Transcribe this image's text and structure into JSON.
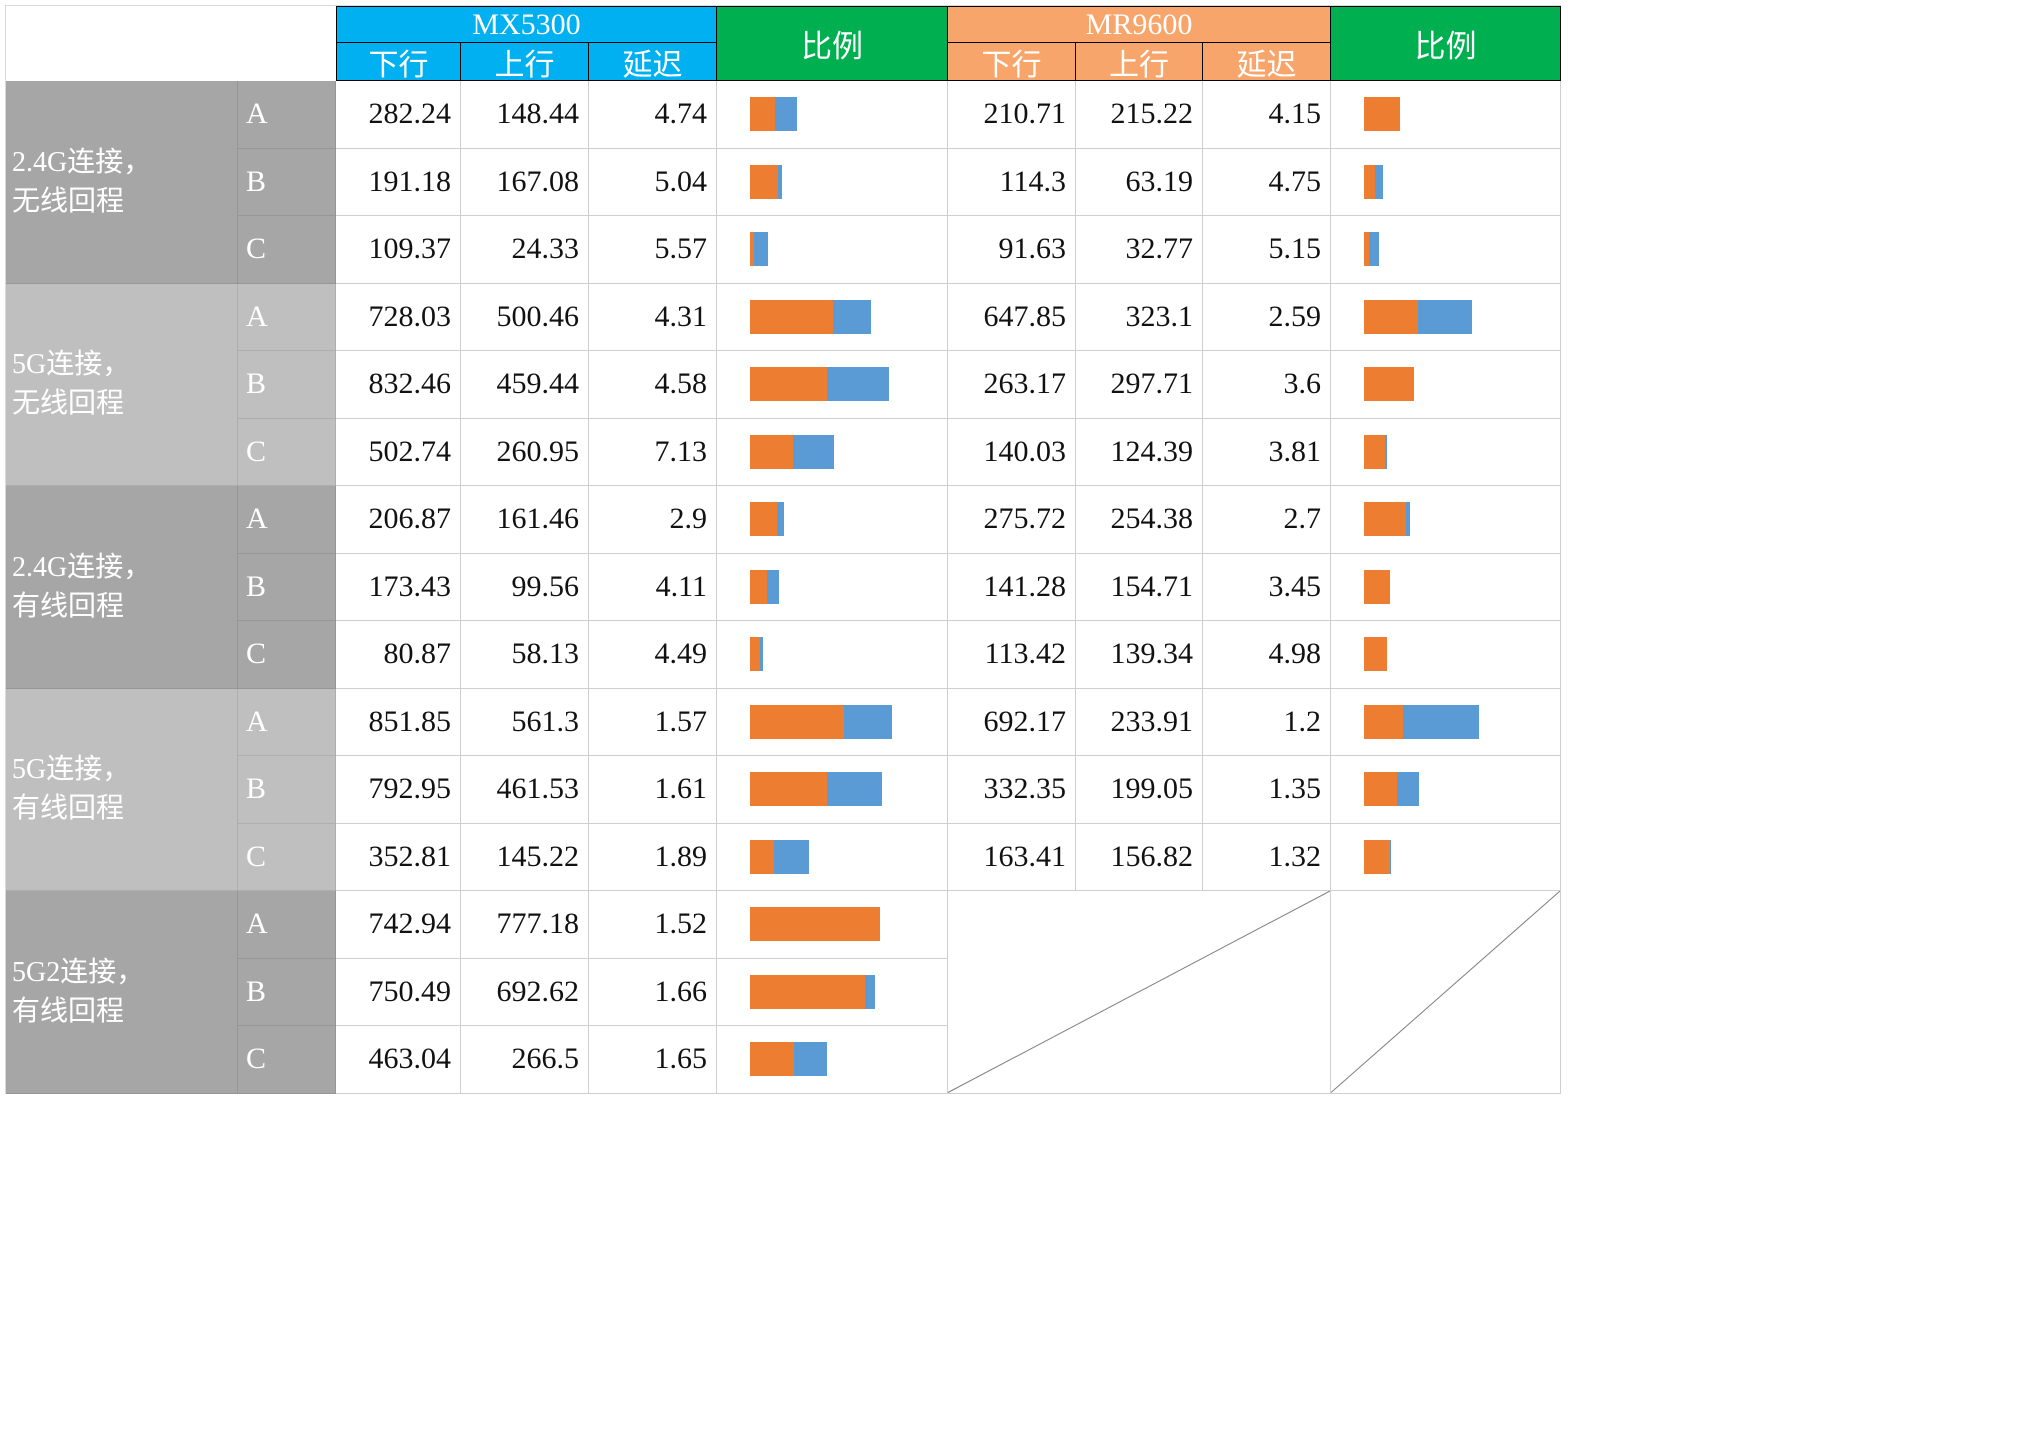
{
  "header": {
    "mx_title": "MX5300",
    "mr_title": "MR9600",
    "ratio_label": "比例",
    "subcols": [
      "下行",
      "上行",
      "延迟"
    ]
  },
  "colors": {
    "mx_header": "#00b0f0",
    "mr_header": "#f7a56a",
    "ratio_header": "#00b050",
    "bar_downlink_blue": "#5b9bd5",
    "bar_uplink_orange": "#ed7d31",
    "group_dark_gray": "#a6a6a6",
    "group_light_gray": "#bfbfbf"
  },
  "chart_data": {
    "type": "table",
    "devices": [
      "MX5300",
      "MR9600"
    ],
    "metric_columns": [
      "下行",
      "上行",
      "延迟",
      "比例"
    ],
    "bar_colors": {
      "下行": "#5b9bd5",
      "上行": "#ed7d31"
    },
    "bar_note": "比例 column shows overlaid data bars: blue bar = 下行 value, orange bar = 上行 value drawn in front, both scaled 1px per 6 units",
    "row_groups": [
      {
        "label1": "2.4G连接，",
        "label2": "无线回程",
        "shade": "dark",
        "rows": [
          {
            "name": "A",
            "mx_down": "282.24",
            "mx_up": "148.44",
            "mx_lat": "4.74",
            "mr_down": "210.71",
            "mr_up": "215.22",
            "mr_lat": "4.15"
          },
          {
            "name": "B",
            "mx_down": "191.18",
            "mx_up": "167.08",
            "mx_lat": "5.04",
            "mr_down": "114.3",
            "mr_up": "63.19",
            "mr_lat": "4.75"
          },
          {
            "name": "C",
            "mx_down": "109.37",
            "mx_up": "24.33",
            "mx_lat": "5.57",
            "mr_down": "91.63",
            "mr_up": "32.77",
            "mr_lat": "5.15"
          }
        ]
      },
      {
        "label1": "5G连接，",
        "label2": "无线回程",
        "shade": "light",
        "rows": [
          {
            "name": "A",
            "mx_down": "728.03",
            "mx_up": "500.46",
            "mx_lat": "4.31",
            "mr_down": "647.85",
            "mr_up": "323.1",
            "mr_lat": "2.59"
          },
          {
            "name": "B",
            "mx_down": "832.46",
            "mx_up": "459.44",
            "mx_lat": "4.58",
            "mr_down": "263.17",
            "mr_up": "297.71",
            "mr_lat": "3.6"
          },
          {
            "name": "C",
            "mx_down": "502.74",
            "mx_up": "260.95",
            "mx_lat": "7.13",
            "mr_down": "140.03",
            "mr_up": "124.39",
            "mr_lat": "3.81"
          }
        ]
      },
      {
        "label1": "2.4G连接，",
        "label2": "有线回程",
        "shade": "dark",
        "rows": [
          {
            "name": "A",
            "mx_down": "206.87",
            "mx_up": "161.46",
            "mx_lat": "2.9",
            "mr_down": "275.72",
            "mr_up": "254.38",
            "mr_lat": "2.7"
          },
          {
            "name": "B",
            "mx_down": "173.43",
            "mx_up": "99.56",
            "mx_lat": "4.11",
            "mr_down": "141.28",
            "mr_up": "154.71",
            "mr_lat": "3.45"
          },
          {
            "name": "C",
            "mx_down": "80.87",
            "mx_up": "58.13",
            "mx_lat": "4.49",
            "mr_down": "113.42",
            "mr_up": "139.34",
            "mr_lat": "4.98"
          }
        ]
      },
      {
        "label1": "5G连接，",
        "label2": "有线回程",
        "shade": "light",
        "rows": [
          {
            "name": "A",
            "mx_down": "851.85",
            "mx_up": "561.3",
            "mx_lat": "1.57",
            "mr_down": "692.17",
            "mr_up": "233.91",
            "mr_lat": "1.2"
          },
          {
            "name": "B",
            "mx_down": "792.95",
            "mx_up": "461.53",
            "mx_lat": "1.61",
            "mr_down": "332.35",
            "mr_up": "199.05",
            "mr_lat": "1.35"
          },
          {
            "name": "C",
            "mx_down": "352.81",
            "mx_up": "145.22",
            "mx_lat": "1.89",
            "mr_down": "163.41",
            "mr_up": "156.82",
            "mr_lat": "1.32"
          }
        ]
      },
      {
        "label1": "5G2连接，",
        "label2": "有线回程",
        "shade": "dark",
        "mr_empty": true,
        "rows": [
          {
            "name": "A",
            "mx_down": "742.94",
            "mx_up": "777.18",
            "mx_lat": "1.52"
          },
          {
            "name": "B",
            "mx_down": "750.49",
            "mx_up": "692.62",
            "mx_lat": "1.66"
          },
          {
            "name": "C",
            "mx_down": "463.04",
            "mx_up": "266.5",
            "mx_lat": "1.65"
          }
        ]
      }
    ]
  }
}
